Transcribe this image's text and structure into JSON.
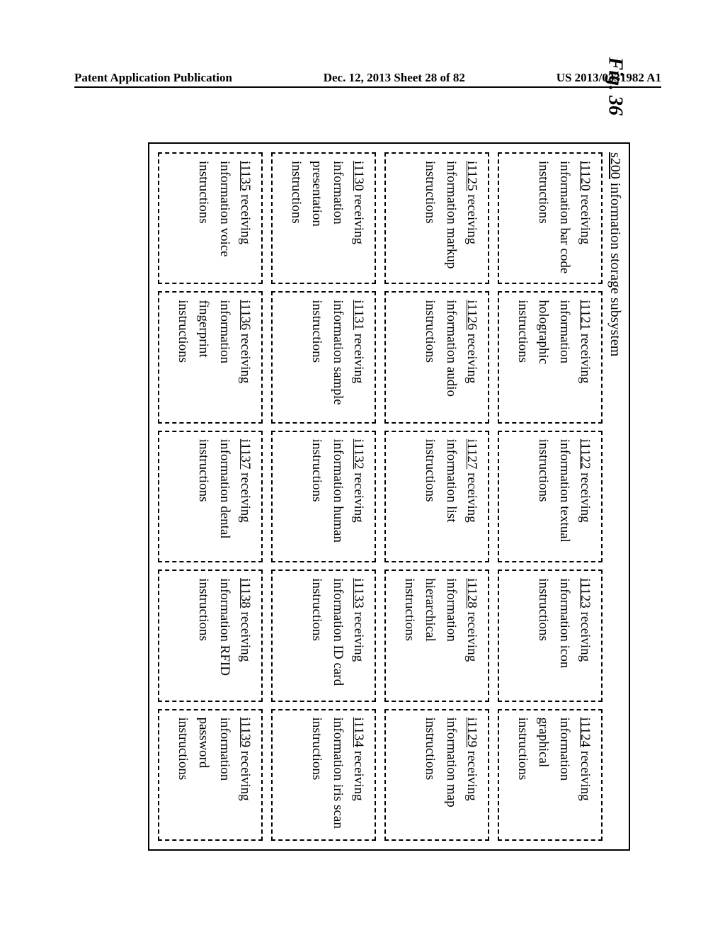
{
  "header": {
    "left": "Patent Application Publication",
    "center": "Dec. 12, 2013  Sheet 28 of 82",
    "right": "US 2013/0331982 A1"
  },
  "figure": {
    "label": "Fig. 36",
    "subsystem_ref": "s200",
    "subsystem_text": " information storage subsystem",
    "boxes": [
      {
        "ref": "i1120",
        "text": " receiving information bar code instructions"
      },
      {
        "ref": "i1121",
        "text": " receiving information holographic instructions"
      },
      {
        "ref": "i1122",
        "text": " receiving information textual instructions"
      },
      {
        "ref": "i1123",
        "text": " receiving information icon instructions"
      },
      {
        "ref": "i1124",
        "text": " receiving information graphical instructions"
      },
      {
        "ref": "i1125",
        "text": " receiving information markup instructions"
      },
      {
        "ref": "i1126",
        "text": " receiving information audio instructions"
      },
      {
        "ref": "i1127",
        "text": " receiving information list instructions"
      },
      {
        "ref": "i1128",
        "text": " receiving information hierarchical instructions"
      },
      {
        "ref": "i1129",
        "text": " receiving information map instructions"
      },
      {
        "ref": "i1130",
        "text": " receiving information presentation instructions"
      },
      {
        "ref": "i1131",
        "text": " receiving information sample instructions"
      },
      {
        "ref": "i1132",
        "text": " receiving information human instructions"
      },
      {
        "ref": "i1133",
        "text": " receiving information ID card instructions"
      },
      {
        "ref": "i1134",
        "text": " receiving information iris scan instructions"
      },
      {
        "ref": "i1135",
        "text": " receiving information voice instructions"
      },
      {
        "ref": "i1136",
        "text": " receiving information fingerprint instructions"
      },
      {
        "ref": "i1137",
        "text": " receiving information dental instructions"
      },
      {
        "ref": "i1138",
        "text": " receiving information RFID instructions"
      },
      {
        "ref": "i1139",
        "text": " receiving information password instructions"
      }
    ]
  }
}
